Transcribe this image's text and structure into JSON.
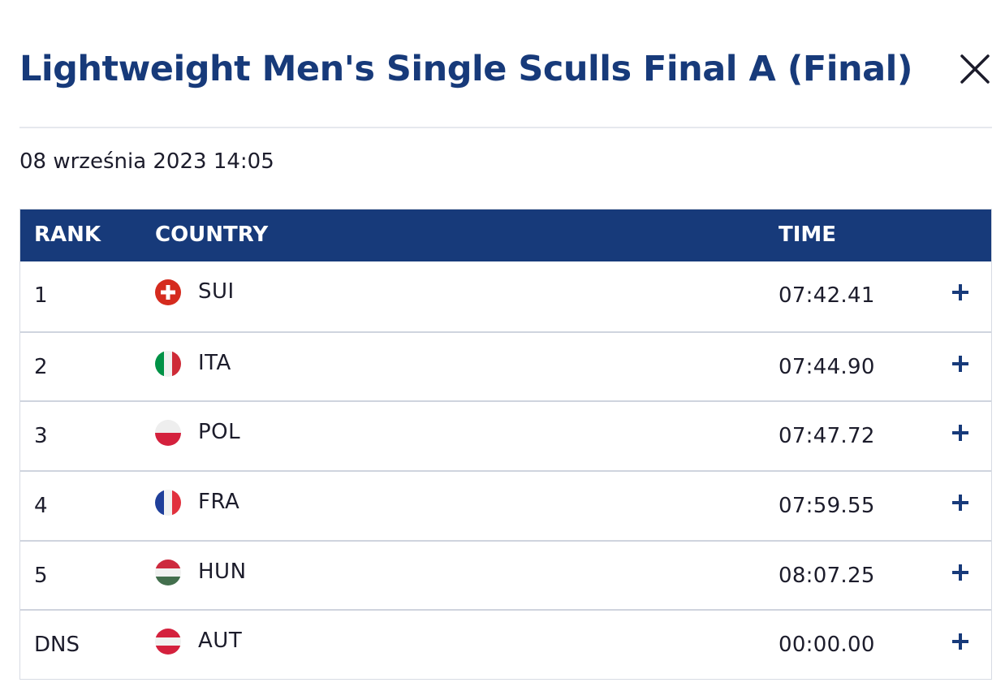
{
  "dialog": {
    "title": "Lightweight Men's Single Sculls Final A (Final)",
    "date": "08 września 2023 14:05",
    "close_icon": "close-icon"
  },
  "table": {
    "headers": {
      "rank": "RANK",
      "country": "COUNTRY",
      "time": "TIME"
    },
    "rows": [
      {
        "rank": "1",
        "country": "SUI",
        "time": "07:42.41",
        "flag_icon": "switzerland-flag-icon"
      },
      {
        "rank": "2",
        "country": "ITA",
        "time": "07:44.90",
        "flag_icon": "italy-flag-icon"
      },
      {
        "rank": "3",
        "country": "POL",
        "time": "07:47.72",
        "flag_icon": "poland-flag-icon"
      },
      {
        "rank": "4",
        "country": "FRA",
        "time": "07:59.55",
        "flag_icon": "france-flag-icon"
      },
      {
        "rank": "5",
        "country": "HUN",
        "time": "08:07.25",
        "flag_icon": "hungary-flag-icon"
      },
      {
        "rank": "DNS",
        "country": "AUT",
        "time": "00:00.00",
        "flag_icon": "austria-flag-icon"
      }
    ],
    "expand_icon": "plus-icon"
  },
  "colors": {
    "brand_navy": "#173a7a",
    "text": "#1c1c2b",
    "row_divider": "#cfd4de"
  }
}
